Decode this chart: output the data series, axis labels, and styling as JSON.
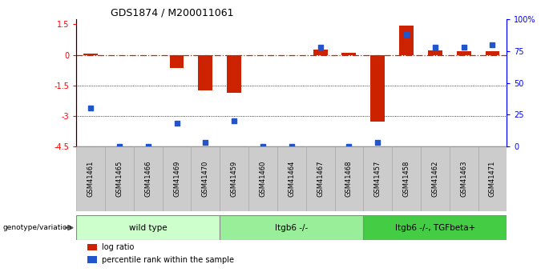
{
  "title": "GDS1874 / M200011061",
  "samples": [
    "GSM41461",
    "GSM41465",
    "GSM41466",
    "GSM41469",
    "GSM41470",
    "GSM41459",
    "GSM41460",
    "GSM41464",
    "GSM41467",
    "GSM41468",
    "GSM41457",
    "GSM41458",
    "GSM41462",
    "GSM41463",
    "GSM41471"
  ],
  "log_ratio": [
    0.05,
    0.0,
    0.0,
    -0.65,
    -1.75,
    -1.85,
    0.0,
    0.0,
    0.25,
    0.12,
    -3.3,
    1.45,
    0.22,
    0.18,
    0.18
  ],
  "percentile_rank": [
    30,
    0,
    0,
    18,
    3,
    20,
    0,
    0,
    78,
    0,
    3,
    88,
    78,
    78,
    80
  ],
  "groups": [
    {
      "label": "wild type",
      "start": 0,
      "end": 5,
      "color": "#ccffcc"
    },
    {
      "label": "Itgb6 -/-",
      "start": 5,
      "end": 10,
      "color": "#99ee99"
    },
    {
      "label": "Itgb6 -/-, TGFbeta+",
      "start": 10,
      "end": 15,
      "color": "#44cc44"
    }
  ],
  "ylim_left": [
    -4.5,
    1.75
  ],
  "ylim_right": [
    0,
    100
  ],
  "yticks_left": [
    1.5,
    0,
    -1.5,
    -3,
    -4.5
  ],
  "yticks_right": [
    100,
    75,
    50,
    25,
    0
  ],
  "bar_color": "#cc2200",
  "dot_color": "#2255cc",
  "legend_items": [
    {
      "color": "#cc2200",
      "label": "log ratio"
    },
    {
      "color": "#2255cc",
      "label": "percentile rank within the sample"
    }
  ],
  "bar_width": 0.5,
  "group_border_color": "#888888",
  "sample_box_color": "#cccccc",
  "sample_box_border": "#aaaaaa"
}
